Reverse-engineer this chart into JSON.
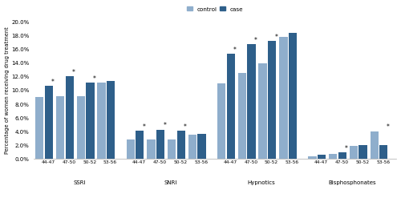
{
  "groups": [
    "SSRI",
    "SNRI",
    "Hypnotics",
    "Bisphosphonates"
  ],
  "age_labels": [
    "44-47",
    "47-50",
    "50-52",
    "53-56"
  ],
  "control_values": {
    "SSRI": [
      8.9,
      9.1,
      9.1,
      11.0
    ],
    "SNRI": [
      2.7,
      2.75,
      2.75,
      3.4
    ],
    "Hypnotics": [
      10.9,
      12.5,
      13.9,
      17.7
    ],
    "Bisphosphonates": [
      0.35,
      0.7,
      1.85,
      3.95
    ]
  },
  "case_values": {
    "SSRI": [
      10.6,
      12.0,
      11.0,
      11.3
    ],
    "SNRI": [
      4.0,
      4.2,
      4.05,
      3.6
    ],
    "Hypnotics": [
      15.2,
      16.6,
      17.1,
      18.3
    ],
    "Bisphosphonates": [
      0.55,
      0.85,
      1.95,
      1.9
    ]
  },
  "significant": {
    "SSRI": [
      true,
      true,
      true,
      false
    ],
    "SNRI": [
      true,
      true,
      true,
      false
    ],
    "Hypnotics": [
      true,
      true,
      true,
      false
    ],
    "Bisphosphonates": [
      false,
      true,
      false,
      true
    ]
  },
  "control_color": "#8faecc",
  "case_color": "#2e5f8a",
  "ylabel": "Percentage of women receiving drug treatment",
  "ylim": [
    0,
    20.0
  ],
  "ytick_labels": [
    "0.0%",
    "2.0%",
    "4.0%",
    "6.0%",
    "8.0%",
    "10.0%",
    "12.0%",
    "14.0%",
    "16.0%",
    "18.0%",
    "20.0%"
  ],
  "ytick_values": [
    0,
    2,
    4,
    6,
    8,
    10,
    12,
    14,
    16,
    18,
    20
  ],
  "legend_labels": [
    "control",
    "case"
  ],
  "background_color": "#ffffff",
  "bar_width": 0.4,
  "title": ""
}
